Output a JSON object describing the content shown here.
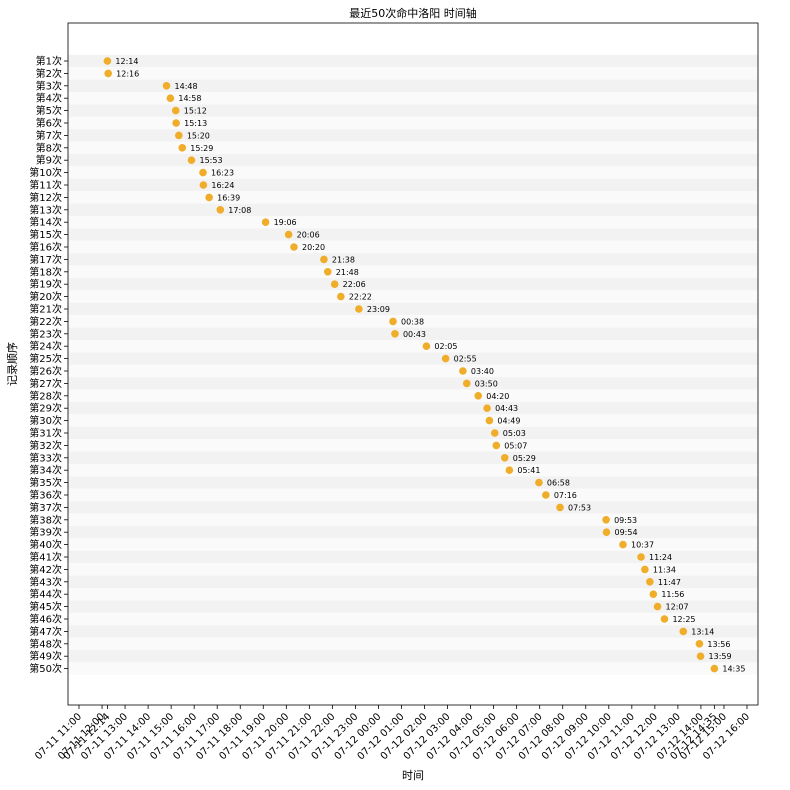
{
  "chart_data": {
    "type": "scatter",
    "title": "最近50次命中洛阳 时间轴",
    "xlabel": "时间",
    "ylabel": "记录顺序",
    "marker_color": "#f0ad2a",
    "band_colors": [
      "#f2f2f2",
      "#fafafa"
    ],
    "x_start": "07-11 11:00",
    "x_end": "07-12 16:00",
    "x_ticks": [
      "07-11 11:00",
      "07-11 12:00",
      "07-11 13:00",
      "07-11 14:00",
      "07-11 15:00",
      "07-11 16:00",
      "07-11 17:00",
      "07-11 18:00",
      "07-11 19:00",
      "07-11 20:00",
      "07-11 21:00",
      "07-11 22:00",
      "07-11 23:00",
      "07-12 00:00",
      "07-12 01:00",
      "07-12 02:00",
      "07-12 03:00",
      "07-12 04:00",
      "07-12 05:00",
      "07-12 06:00",
      "07-12 07:00",
      "07-12 08:00",
      "07-12 09:00",
      "07-12 10:00",
      "07-12 11:00",
      "07-12 12:00",
      "07-12 13:00",
      "07-12 14:00",
      "07-12 15:00",
      "07-12 16:00"
    ],
    "x_ticks_extra": [
      "07-11 12:14",
      "07-12 14:35"
    ],
    "points": [
      {
        "label": "第1次",
        "time": "07-11 12:14",
        "annotation": "12:14"
      },
      {
        "label": "第2次",
        "time": "07-11 12:16",
        "annotation": "12:16"
      },
      {
        "label": "第3次",
        "time": "07-11 14:48",
        "annotation": "14:48"
      },
      {
        "label": "第4次",
        "time": "07-11 14:58",
        "annotation": "14:58"
      },
      {
        "label": "第5次",
        "time": "07-11 15:12",
        "annotation": "15:12"
      },
      {
        "label": "第6次",
        "time": "07-11 15:13",
        "annotation": "15:13"
      },
      {
        "label": "第7次",
        "time": "07-11 15:20",
        "annotation": "15:20"
      },
      {
        "label": "第8次",
        "time": "07-11 15:29",
        "annotation": "15:29"
      },
      {
        "label": "第9次",
        "time": "07-11 15:53",
        "annotation": "15:53"
      },
      {
        "label": "第10次",
        "time": "07-11 16:23",
        "annotation": "16:23"
      },
      {
        "label": "第11次",
        "time": "07-11 16:24",
        "annotation": "16:24"
      },
      {
        "label": "第12次",
        "time": "07-11 16:39",
        "annotation": "16:39"
      },
      {
        "label": "第13次",
        "time": "07-11 17:08",
        "annotation": "17:08"
      },
      {
        "label": "第14次",
        "time": "07-11 19:06",
        "annotation": "19:06"
      },
      {
        "label": "第15次",
        "time": "07-11 20:06",
        "annotation": "20:06"
      },
      {
        "label": "第16次",
        "time": "07-11 20:20",
        "annotation": "20:20"
      },
      {
        "label": "第17次",
        "time": "07-11 21:38",
        "annotation": "21:38"
      },
      {
        "label": "第18次",
        "time": "07-11 21:48",
        "annotation": "21:48"
      },
      {
        "label": "第19次",
        "time": "07-11 22:06",
        "annotation": "22:06"
      },
      {
        "label": "第20次",
        "time": "07-11 22:22",
        "annotation": "22:22"
      },
      {
        "label": "第21次",
        "time": "07-11 23:09",
        "annotation": "23:09"
      },
      {
        "label": "第22次",
        "time": "07-12 00:38",
        "annotation": "00:38"
      },
      {
        "label": "第23次",
        "time": "07-12 00:43",
        "annotation": "00:43"
      },
      {
        "label": "第24次",
        "time": "07-12 02:05",
        "annotation": "02:05"
      },
      {
        "label": "第25次",
        "time": "07-12 02:55",
        "annotation": "02:55"
      },
      {
        "label": "第26次",
        "time": "07-12 03:40",
        "annotation": "03:40"
      },
      {
        "label": "第27次",
        "time": "07-12 03:50",
        "annotation": "03:50"
      },
      {
        "label": "第28次",
        "time": "07-12 04:20",
        "annotation": "04:20"
      },
      {
        "label": "第29次",
        "time": "07-12 04:43",
        "annotation": "04:43"
      },
      {
        "label": "第30次",
        "time": "07-12 04:49",
        "annotation": "04:49"
      },
      {
        "label": "第31次",
        "time": "07-12 05:03",
        "annotation": "05:03"
      },
      {
        "label": "第32次",
        "time": "07-12 05:07",
        "annotation": "05:07"
      },
      {
        "label": "第33次",
        "time": "07-12 05:29",
        "annotation": "05:29"
      },
      {
        "label": "第34次",
        "time": "07-12 05:41",
        "annotation": "05:41"
      },
      {
        "label": "第35次",
        "time": "07-12 06:58",
        "annotation": "06:58"
      },
      {
        "label": "第36次",
        "time": "07-12 07:16",
        "annotation": "07:16"
      },
      {
        "label": "第37次",
        "time": "07-12 07:53",
        "annotation": "07:53"
      },
      {
        "label": "第38次",
        "time": "07-12 09:53",
        "annotation": "09:53"
      },
      {
        "label": "第39次",
        "time": "07-12 09:54",
        "annotation": "09:54"
      },
      {
        "label": "第40次",
        "time": "07-12 10:37",
        "annotation": "10:37"
      },
      {
        "label": "第41次",
        "time": "07-12 11:24",
        "annotation": "11:24"
      },
      {
        "label": "第42次",
        "time": "07-12 11:34",
        "annotation": "11:34"
      },
      {
        "label": "第43次",
        "time": "07-12 11:47",
        "annotation": "11:47"
      },
      {
        "label": "第44次",
        "time": "07-12 11:56",
        "annotation": "11:56"
      },
      {
        "label": "第45次",
        "time": "07-12 12:07",
        "annotation": "12:07"
      },
      {
        "label": "第46次",
        "time": "07-12 12:25",
        "annotation": "12:25"
      },
      {
        "label": "第47次",
        "time": "07-12 13:14",
        "annotation": "13:14"
      },
      {
        "label": "第48次",
        "time": "07-12 13:56",
        "annotation": "13:56"
      },
      {
        "label": "第49次",
        "time": "07-12 13:59",
        "annotation": "13:59"
      },
      {
        "label": "第50次",
        "time": "07-12 14:35",
        "annotation": "14:35"
      }
    ]
  }
}
